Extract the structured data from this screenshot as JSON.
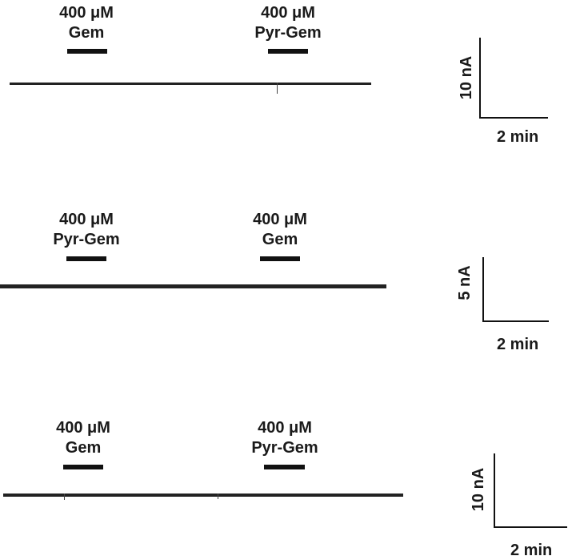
{
  "panels": [
    {
      "drug1": {
        "conc": "400 μM",
        "name": "Gem"
      },
      "drug2": {
        "conc": "400 μM",
        "name": "Pyr-Gem"
      },
      "scale": {
        "y": "10 nA",
        "x": "2 min"
      }
    },
    {
      "drug1": {
        "conc": "400 μM",
        "name": "Pyr-Gem"
      },
      "drug2": {
        "conc": "400 μM",
        "name": "Gem"
      },
      "scale": {
        "y": "5 nA",
        "x": "2 min"
      }
    },
    {
      "drug1": {
        "conc": "400 μM",
        "name": "Gem"
      },
      "drug2": {
        "conc": "400 μM",
        "name": "Pyr-Gem"
      },
      "scale": {
        "y": "10 nA",
        "x": "2 min"
      }
    }
  ]
}
